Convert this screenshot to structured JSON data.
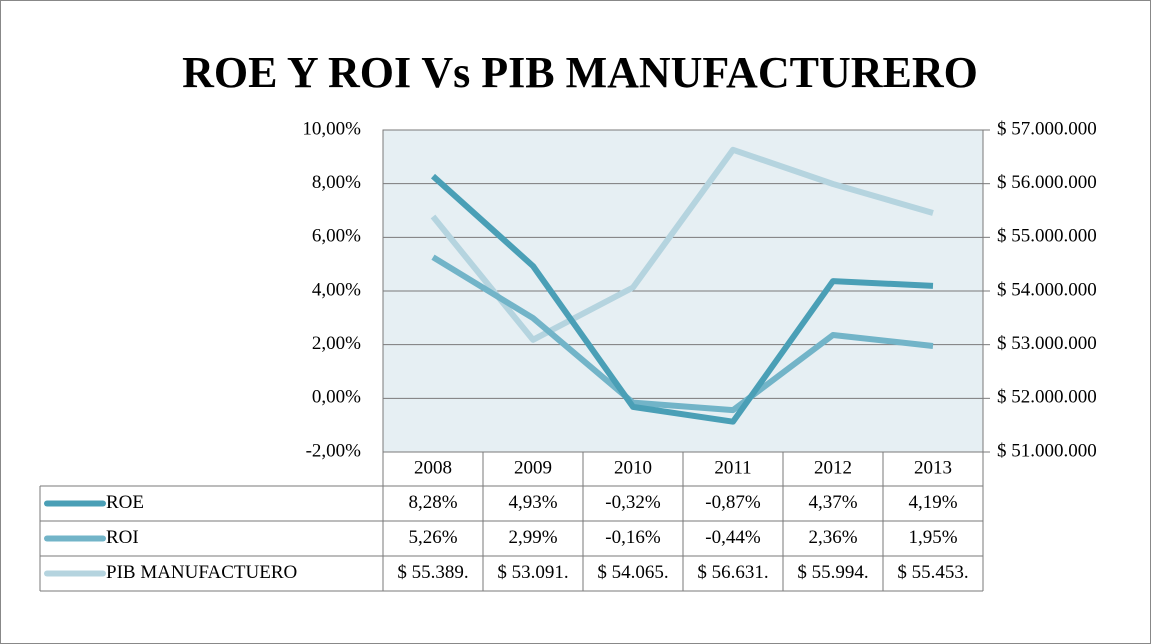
{
  "chart_data": {
    "type": "line",
    "title": "ROE Y ROI Vs PIB MANUFACTURERO",
    "categories": [
      "2008",
      "2009",
      "2010",
      "2011",
      "2012",
      "2013"
    ],
    "series": [
      {
        "name": "ROE",
        "color": "#4a9fb6",
        "values": [
          8.28,
          4.93,
          -0.32,
          -0.87,
          4.37,
          4.19
        ],
        "value_labels": [
          "8,28%",
          "4,93%",
          "-0,32%",
          "-0,87%",
          "4,37%",
          "4,19%"
        ]
      },
      {
        "name": "ROI",
        "color": "#72b4c8",
        "values": [
          5.26,
          2.99,
          -0.16,
          -0.44,
          2.36,
          1.95
        ],
        "value_labels": [
          "5,26%",
          "2,99%",
          "-0,16%",
          "-0,44%",
          "2,36%",
          "1,95%"
        ]
      },
      {
        "name": "PIB MANUFACTUERO",
        "color": "#b5d4df",
        "axis": "y2",
        "values": [
          55389000,
          53091000,
          54065000,
          56631000,
          55994000,
          55453000
        ],
        "value_labels": [
          "$ 55.389.",
          "$ 53.091.",
          "$ 54.065.",
          "$ 56.631.",
          "$ 55.994.",
          "$ 55.453."
        ]
      }
    ],
    "ylim": [
      -2,
      10
    ],
    "yticks": [
      {
        "value": -2,
        "label": "-2,00%"
      },
      {
        "value": 0,
        "label": "0,00%"
      },
      {
        "value": 2,
        "label": "2,00%"
      },
      {
        "value": 4,
        "label": "4,00%"
      },
      {
        "value": 6,
        "label": "6,00%"
      },
      {
        "value": 8,
        "label": "8,00%"
      },
      {
        "value": 10,
        "label": "10,00%"
      }
    ],
    "y2lim": [
      51000000,
      57000000
    ],
    "y2ticks": [
      {
        "value": 51000000,
        "label": "$ 51.000.000"
      },
      {
        "value": 52000000,
        "label": "$ 52.000.000"
      },
      {
        "value": 53000000,
        "label": "$ 53.000.000"
      },
      {
        "value": 54000000,
        "label": "$ 54.000.000"
      },
      {
        "value": 55000000,
        "label": "$ 55.000.000"
      },
      {
        "value": 56000000,
        "label": "$ 56.000.000"
      },
      {
        "value": 57000000,
        "label": "$ 57.000.000"
      }
    ],
    "grid": true,
    "plot_background": "#e6eff3"
  }
}
